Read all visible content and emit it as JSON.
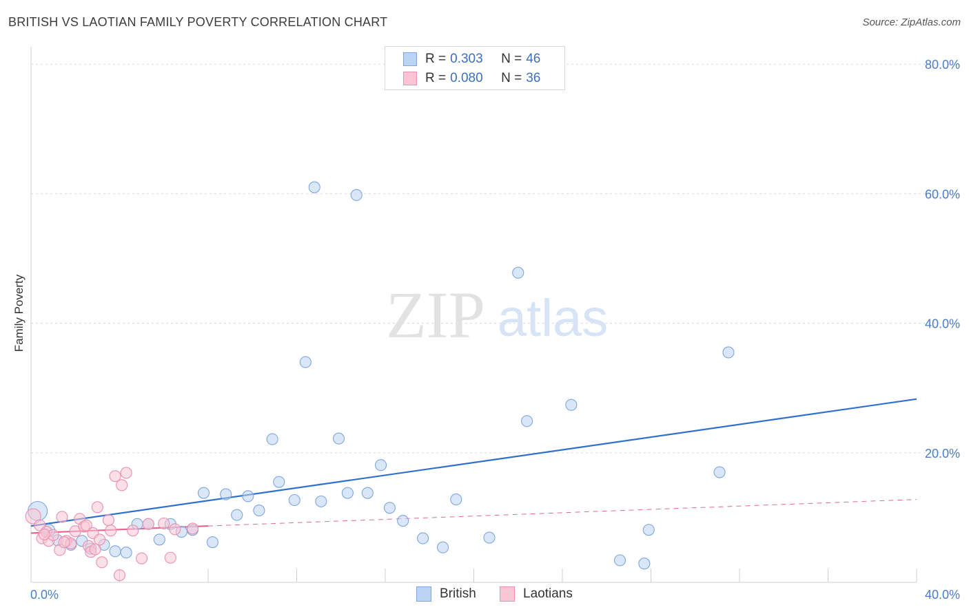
{
  "header": {
    "title": "BRITISH VS LAOTIAN FAMILY POVERTY CORRELATION CHART",
    "source": "Source: ZipAtlas.com"
  },
  "watermark": {
    "zip": "ZIP",
    "atlas": "atlas"
  },
  "legend": {
    "rows": [
      {
        "r_label": "R =",
        "r_value": "0.303",
        "n_label": "N =",
        "n_value": "46",
        "color": "#a9c6ef",
        "border": "#7ea5dd"
      },
      {
        "r_label": "R =",
        "r_value": "0.080",
        "n_label": "N =",
        "n_value": "36",
        "color": "#f8bfd0",
        "border": "#ea8fac"
      }
    ]
  },
  "bottom_legend": {
    "british": "British",
    "laotians": "Laotians"
  },
  "colors": {
    "british_fill": "#bcd4f3",
    "british_stroke": "#7ea5dd",
    "british_line": "#2f6fcf",
    "laotian_fill": "#f9c6d6",
    "laotian_stroke": "#ea8fac",
    "laotian_line": "#e06893",
    "grid": "#d8d8d8",
    "tick_label": "#4a7cc7"
  },
  "chart_data": {
    "type": "scatter",
    "title": "BRITISH VS LAOTIAN FAMILY POVERTY CORRELATION CHART",
    "xlabel": "",
    "ylabel": "Family Poverty",
    "xlim": [
      0,
      40
    ],
    "ylim": [
      0,
      82
    ],
    "x_ticks_labels": [
      "0.0%",
      "40.0%"
    ],
    "y_ticks": [
      20,
      40,
      60,
      80
    ],
    "y_tick_labels": [
      "20.0%",
      "40.0%",
      "60.0%",
      "80.0%"
    ],
    "grid": true,
    "series": [
      {
        "name": "British",
        "points": [
          [
            0.3,
            11.0,
            14
          ],
          [
            0.8,
            8.0,
            9
          ],
          [
            1.2,
            6.5,
            8
          ],
          [
            1.8,
            5.8,
            8
          ],
          [
            2.3,
            6.4,
            8
          ],
          [
            2.7,
            5.2,
            8
          ],
          [
            3.3,
            5.8,
            8
          ],
          [
            3.8,
            4.8,
            8
          ],
          [
            4.3,
            4.6,
            8
          ],
          [
            4.8,
            9.0,
            8
          ],
          [
            5.3,
            9.0,
            8
          ],
          [
            5.8,
            6.6,
            8
          ],
          [
            6.3,
            9.0,
            8
          ],
          [
            6.8,
            7.8,
            8
          ],
          [
            7.3,
            8.1,
            8
          ],
          [
            7.8,
            13.8,
            8
          ],
          [
            8.2,
            6.2,
            8
          ],
          [
            8.8,
            13.6,
            8
          ],
          [
            9.3,
            10.4,
            8
          ],
          [
            9.8,
            13.3,
            8
          ],
          [
            10.3,
            11.1,
            8
          ],
          [
            10.9,
            22.1,
            8
          ],
          [
            11.2,
            15.5,
            8
          ],
          [
            11.9,
            12.7,
            8
          ],
          [
            12.4,
            34.0,
            8
          ],
          [
            12.8,
            61.0,
            8
          ],
          [
            13.1,
            12.5,
            8
          ],
          [
            13.9,
            22.2,
            8
          ],
          [
            14.3,
            13.8,
            8
          ],
          [
            14.7,
            59.8,
            8
          ],
          [
            15.2,
            13.8,
            8
          ],
          [
            15.8,
            18.1,
            8
          ],
          [
            16.2,
            11.5,
            8
          ],
          [
            16.8,
            9.5,
            8
          ],
          [
            17.7,
            6.8,
            8
          ],
          [
            18.6,
            5.4,
            8
          ],
          [
            19.2,
            12.8,
            8
          ],
          [
            20.7,
            6.9,
            8
          ],
          [
            22.0,
            47.8,
            8
          ],
          [
            22.4,
            24.9,
            8
          ],
          [
            24.4,
            27.4,
            8
          ],
          [
            26.6,
            3.4,
            8
          ],
          [
            27.7,
            2.9,
            8
          ],
          [
            27.9,
            8.1,
            8
          ],
          [
            31.1,
            17.0,
            8
          ],
          [
            31.5,
            35.5,
            8
          ]
        ]
      },
      {
        "name": "Laotians",
        "points": [
          [
            0.1,
            10.2,
            11
          ],
          [
            0.4,
            8.8,
            8
          ],
          [
            0.5,
            6.8,
            8
          ],
          [
            0.7,
            7.8,
            8
          ],
          [
            0.8,
            6.4,
            8
          ],
          [
            1.0,
            7.3,
            8
          ],
          [
            1.3,
            5.0,
            8
          ],
          [
            1.4,
            10.1,
            8
          ],
          [
            1.6,
            6.4,
            8
          ],
          [
            1.8,
            6.0,
            8
          ],
          [
            2.0,
            7.9,
            8
          ],
          [
            2.2,
            9.8,
            8
          ],
          [
            2.4,
            8.6,
            8
          ],
          [
            2.5,
            8.8,
            8
          ],
          [
            2.6,
            5.6,
            8
          ],
          [
            2.7,
            4.7,
            8
          ],
          [
            2.8,
            7.6,
            8
          ],
          [
            2.9,
            5.1,
            8
          ],
          [
            3.0,
            11.6,
            8
          ],
          [
            3.1,
            6.6,
            8
          ],
          [
            3.2,
            3.1,
            8
          ],
          [
            3.5,
            9.6,
            8
          ],
          [
            3.6,
            8.0,
            8
          ],
          [
            3.8,
            16.4,
            8
          ],
          [
            4.0,
            1.1,
            8
          ],
          [
            4.1,
            15.0,
            8
          ],
          [
            4.3,
            16.9,
            8
          ],
          [
            4.6,
            8.0,
            8
          ],
          [
            5.0,
            3.7,
            8
          ],
          [
            5.3,
            9.0,
            8
          ],
          [
            6.0,
            9.1,
            8
          ],
          [
            6.3,
            3.8,
            8
          ],
          [
            6.5,
            8.2,
            8
          ],
          [
            7.3,
            8.3,
            8
          ],
          [
            0.6,
            7.4,
            8
          ],
          [
            1.5,
            6.2,
            8
          ]
        ]
      }
    ],
    "trendlines": [
      {
        "name": "British",
        "x": [
          0,
          40
        ],
        "y": [
          8.7,
          28.3
        ],
        "style": "solid"
      },
      {
        "name": "Laotians",
        "x": [
          0,
          8
        ],
        "y": [
          7.6,
          8.7
        ],
        "style": "solid"
      },
      {
        "name": "Laotians",
        "x": [
          8,
          40
        ],
        "y": [
          8.7,
          12.8
        ],
        "style": "dashed"
      }
    ]
  }
}
